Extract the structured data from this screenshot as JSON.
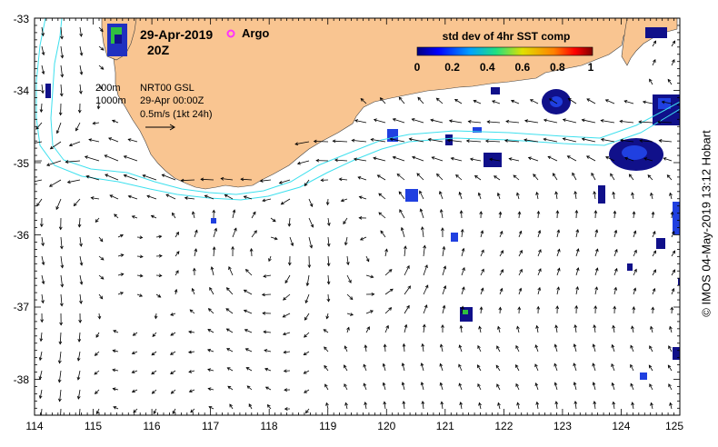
{
  "header": {
    "date": "29-Apr-2019",
    "time": "20Z",
    "argo_label": "Argo"
  },
  "legend": {
    "contour_shallow": "200m",
    "contour_deep": "1000m",
    "product": "NRT00 GSL",
    "product_time": "29-Apr 00:00Z",
    "vector_scale": "0.5m/s (1kt 24h)"
  },
  "colorbar": {
    "title": "std dev of 4hr SST comp",
    "ticks": [
      "0",
      "0.2",
      "0.4",
      "0.6",
      "0.8",
      "1"
    ]
  },
  "axes": {
    "x_ticks": [
      "114",
      "115",
      "116",
      "117",
      "118",
      "119",
      "120",
      "121",
      "122",
      "123",
      "124",
      "125"
    ],
    "y_ticks": [
      "-33",
      "-34",
      "-35",
      "-36",
      "-37",
      "-38"
    ]
  },
  "credit": "© IMOS 04-May-2019 13:12 Hobart",
  "colors": {
    "land": "#f9c591",
    "contour": "#3ee0ee",
    "argo": "#ff33ff",
    "sst_dark": "#10108a",
    "sst_blue": "#2040e0",
    "sst_green": "#30c040"
  }
}
